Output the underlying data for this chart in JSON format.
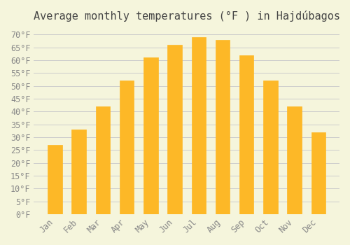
{
  "title": "Average monthly temperatures (°F ) in Hajdúbagos",
  "months": [
    "Jan",
    "Feb",
    "Mar",
    "Apr",
    "May",
    "Jun",
    "Jul",
    "Aug",
    "Sep",
    "Oct",
    "Nov",
    "Dec"
  ],
  "values": [
    27,
    33,
    42,
    52,
    61,
    66,
    69,
    68,
    62,
    52,
    42,
    32
  ],
  "bar_color": "#FDB827",
  "bar_edge_color": "#FDB827",
  "background_color": "#F5F5DC",
  "grid_color": "#CCCCCC",
  "ylim": [
    0,
    72
  ],
  "yticks": [
    0,
    5,
    10,
    15,
    20,
    25,
    30,
    35,
    40,
    45,
    50,
    55,
    60,
    65,
    70
  ],
  "ytick_labels": [
    "0°F",
    "5°F",
    "10°F",
    "15°F",
    "20°F",
    "25°F",
    "30°F",
    "35°F",
    "40°F",
    "45°F",
    "50°F",
    "55°F",
    "60°F",
    "65°F",
    "70°F"
  ],
  "title_fontsize": 11,
  "tick_fontsize": 8.5,
  "font_color": "#888888"
}
